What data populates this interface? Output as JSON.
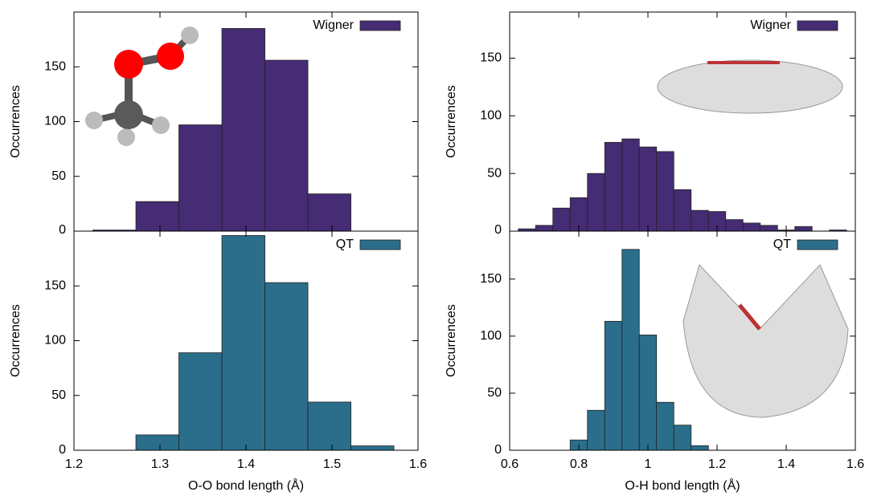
{
  "chart_data": [
    {
      "type": "histogram",
      "ylabel": "Occurrences",
      "legend_loc": "upper right",
      "bins": [
        1.222,
        1.272,
        1.322,
        1.372,
        1.422,
        1.472,
        1.522
      ],
      "series": [
        {
          "name": "Wigner",
          "color": "#452c74",
          "values": [
            1,
            27,
            97,
            185,
            156,
            34
          ]
        }
      ],
      "xlim": [
        1.2,
        1.6
      ],
      "xticks": [
        1.2,
        1.3,
        1.4,
        1.5,
        1.6
      ],
      "ylim": [
        0,
        200
      ],
      "yticks": [
        0,
        50,
        100,
        150
      ]
    },
    {
      "type": "histogram",
      "xlabel": "O-O bond length (Å)",
      "ylabel": "Occurrences",
      "legend_loc": "upper right",
      "bins": [
        1.272,
        1.322,
        1.372,
        1.422,
        1.472,
        1.522,
        1.572
      ],
      "series": [
        {
          "name": "QT",
          "color": "#2b6e8b",
          "values": [
            14,
            89,
            196,
            153,
            44,
            4
          ]
        }
      ],
      "xlim": [
        1.2,
        1.6
      ],
      "xticks": [
        1.2,
        1.3,
        1.4,
        1.5,
        1.6
      ],
      "ylim": [
        0,
        200
      ],
      "yticks": [
        0,
        50,
        100,
        150
      ]
    },
    {
      "type": "histogram",
      "ylabel": "Occurrences",
      "legend_loc": "upper right",
      "bins": [
        0.625,
        0.675,
        0.725,
        0.775,
        0.825,
        0.875,
        0.925,
        0.975,
        1.025,
        1.075,
        1.125,
        1.175,
        1.225,
        1.275,
        1.325,
        1.375,
        1.425,
        1.475,
        1.525,
        1.575
      ],
      "series": [
        {
          "name": "Wigner",
          "color": "#452c74",
          "values": [
            2,
            5,
            20,
            29,
            50,
            77,
            80,
            73,
            69,
            36,
            18,
            17,
            10,
            7,
            5,
            1,
            4,
            0,
            1
          ]
        }
      ],
      "xlim": [
        0.6,
        1.6
      ],
      "xticks": [
        0.6,
        0.8,
        1,
        1.2,
        1.4,
        1.6
      ],
      "ylim": [
        0,
        190
      ],
      "yticks": [
        0,
        50,
        100,
        150
      ]
    },
    {
      "type": "histogram",
      "xlabel": "O-H bond length (Å)",
      "ylabel": "Occurrences",
      "legend_loc": "upper right",
      "bins": [
        0.775,
        0.825,
        0.875,
        0.925,
        0.975,
        1.025,
        1.075,
        1.125,
        1.175
      ],
      "series": [
        {
          "name": "QT",
          "color": "#2b6e8b",
          "values": [
            9,
            35,
            113,
            176,
            101,
            42,
            22,
            4
          ]
        }
      ],
      "xlim": [
        0.6,
        1.6
      ],
      "xticks": [
        0.6,
        0.8,
        1,
        1.2,
        1.4,
        1.6
      ],
      "ylim": [
        0,
        192
      ],
      "yticks": [
        0,
        50,
        100,
        150
      ]
    }
  ]
}
